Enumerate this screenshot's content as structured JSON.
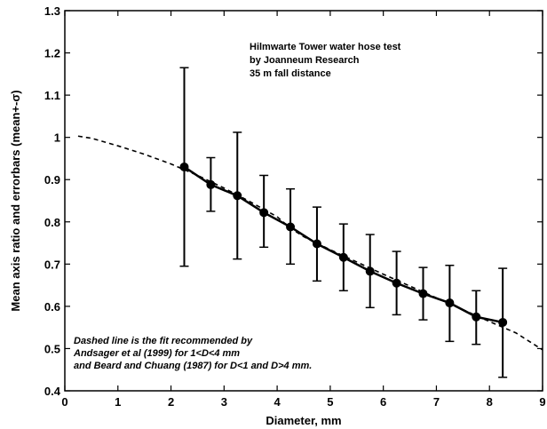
{
  "chart_data": {
    "type": "line",
    "xlabel": "Diameter, mm",
    "ylabel": "Mean axis ratio and errorbars (mean+-σ)",
    "xlim": [
      0,
      9
    ],
    "ylim": [
      0.4,
      1.3
    ],
    "xticks": [
      "0",
      "1",
      "2",
      "3",
      "4",
      "5",
      "6",
      "7",
      "8",
      "9"
    ],
    "yticks": [
      "0.4",
      "0.5",
      "0.6",
      "0.7",
      "0.8",
      "0.9",
      "1",
      "1.1",
      "1.2",
      "1.3"
    ],
    "grid": false,
    "annotations": {
      "top": [
        "Hilmwarte Tower water hose test",
        "by Joanneum Research",
        "35 m fall distance"
      ],
      "bottom": [
        "Dashed line is the fit recommended by",
        "Andsager et al (1999) for 1<D<4 mm",
        "and Beard and Chuang (1987) for D<1 and D>4 mm."
      ]
    },
    "series": [
      {
        "style": "solid-with-markers",
        "x": [
          2.25,
          2.75,
          3.25,
          3.75,
          4.25,
          4.75,
          5.25,
          5.75,
          6.25,
          6.75,
          7.25,
          7.75,
          8.25
        ],
        "y": [
          0.93,
          0.888,
          0.862,
          0.822,
          0.788,
          0.748,
          0.716,
          0.683,
          0.655,
          0.63,
          0.608,
          0.575,
          0.562
        ],
        "err_low": [
          0.695,
          0.825,
          0.712,
          0.74,
          0.7,
          0.66,
          0.637,
          0.597,
          0.58,
          0.568,
          0.517,
          0.51,
          0.432
        ],
        "err_high": [
          1.165,
          0.952,
          1.012,
          0.91,
          0.878,
          0.835,
          0.795,
          0.77,
          0.73,
          0.692,
          0.697,
          0.637,
          0.69
        ]
      },
      {
        "style": "dashed",
        "x": [
          0.25,
          0.5,
          1.0,
          1.5,
          2.0,
          2.5,
          3.0,
          3.5,
          4.0,
          4.25,
          4.5,
          5.0,
          5.5,
          6.0,
          6.5,
          7.0,
          7.5,
          8.0,
          8.5,
          9.0
        ],
        "y": [
          1.003,
          0.998,
          0.98,
          0.96,
          0.937,
          0.91,
          0.88,
          0.847,
          0.812,
          0.785,
          0.765,
          0.734,
          0.705,
          0.676,
          0.648,
          0.62,
          0.592,
          0.564,
          0.537,
          0.497
        ]
      }
    ]
  }
}
